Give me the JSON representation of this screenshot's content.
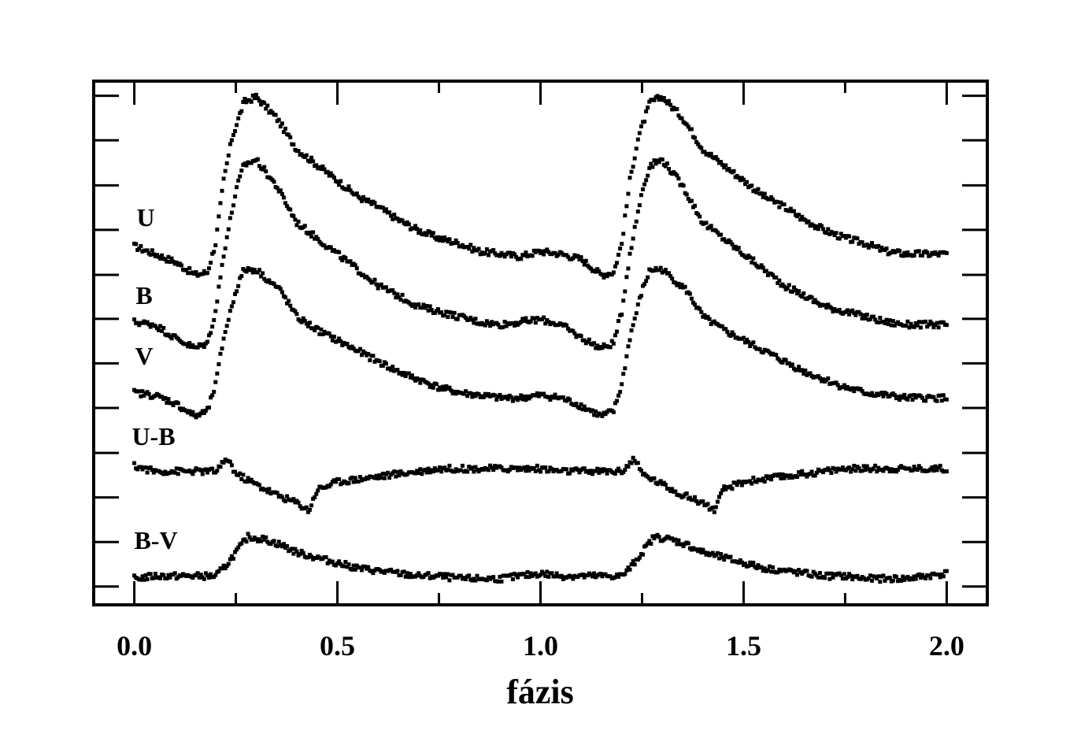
{
  "chart_data": {
    "type": "scatter",
    "title": "",
    "xlabel": "fázis",
    "ylabel": "",
    "xlim": [
      -0.1,
      2.1
    ],
    "ylim": [
      0,
      1
    ],
    "x_ticks": [
      0.0,
      0.5,
      1.0,
      1.5,
      2.0
    ],
    "x_tick_labels": [
      "0.0",
      "0.5",
      "1.0",
      "1.5",
      "2.0"
    ],
    "y_ticks": [
      0.035,
      0.12,
      0.205,
      0.29,
      0.376,
      0.461,
      0.546,
      0.63,
      0.716,
      0.801,
      0.887,
      0.972
    ],
    "y_tick_labels": [],
    "grid": false,
    "legend": "none",
    "marker_color": "#000000",
    "series": [
      {
        "name": "U",
        "x": [
          0.0,
          0.05,
          0.1,
          0.15,
          0.18,
          0.2,
          0.22,
          0.24,
          0.27,
          0.3,
          0.35,
          0.4,
          0.45,
          0.5,
          0.55,
          0.6,
          0.65,
          0.7,
          0.75,
          0.8,
          0.85,
          0.9,
          0.95,
          1.0,
          1.05,
          1.1,
          1.15,
          1.18,
          1.2,
          1.22,
          1.24,
          1.27,
          1.3,
          1.35,
          1.4,
          1.45,
          1.5,
          1.55,
          1.6,
          1.65,
          1.7,
          1.75,
          1.8,
          1.85,
          1.9,
          1.95,
          2.0
        ],
        "y": [
          0.685,
          0.67,
          0.655,
          0.63,
          0.635,
          0.69,
          0.81,
          0.89,
          0.96,
          0.97,
          0.93,
          0.87,
          0.84,
          0.81,
          0.78,
          0.76,
          0.735,
          0.715,
          0.7,
          0.69,
          0.675,
          0.67,
          0.665,
          0.675,
          0.67,
          0.66,
          0.63,
          0.635,
          0.69,
          0.81,
          0.89,
          0.96,
          0.97,
          0.93,
          0.87,
          0.84,
          0.81,
          0.78,
          0.76,
          0.735,
          0.715,
          0.7,
          0.69,
          0.675,
          0.67,
          0.67,
          0.67
        ]
      },
      {
        "name": "B",
        "x": [
          0.0,
          0.05,
          0.1,
          0.15,
          0.18,
          0.2,
          0.22,
          0.25,
          0.27,
          0.3,
          0.35,
          0.4,
          0.45,
          0.5,
          0.55,
          0.6,
          0.65,
          0.7,
          0.75,
          0.8,
          0.85,
          0.9,
          0.95,
          1.0,
          1.05,
          1.1,
          1.15,
          1.18,
          1.2,
          1.22,
          1.25,
          1.27,
          1.3,
          1.35,
          1.4,
          1.45,
          1.5,
          1.55,
          1.6,
          1.65,
          1.7,
          1.75,
          1.8,
          1.85,
          1.9,
          1.95,
          2.0
        ],
        "y": [
          0.54,
          0.535,
          0.51,
          0.49,
          0.5,
          0.56,
          0.67,
          0.79,
          0.84,
          0.85,
          0.8,
          0.73,
          0.7,
          0.67,
          0.64,
          0.61,
          0.59,
          0.57,
          0.56,
          0.55,
          0.54,
          0.535,
          0.54,
          0.545,
          0.535,
          0.51,
          0.49,
          0.5,
          0.56,
          0.67,
          0.79,
          0.84,
          0.85,
          0.8,
          0.73,
          0.7,
          0.67,
          0.64,
          0.61,
          0.59,
          0.57,
          0.56,
          0.55,
          0.54,
          0.535,
          0.535,
          0.535
        ]
      },
      {
        "name": "V",
        "x": [
          0.0,
          0.05,
          0.1,
          0.15,
          0.18,
          0.2,
          0.22,
          0.25,
          0.27,
          0.3,
          0.33,
          0.36,
          0.4,
          0.45,
          0.5,
          0.55,
          0.6,
          0.65,
          0.7,
          0.75,
          0.8,
          0.85,
          0.9,
          0.95,
          1.0,
          1.05,
          1.1,
          1.15,
          1.18,
          1.2,
          1.22,
          1.25,
          1.27,
          1.3,
          1.33,
          1.36,
          1.4,
          1.45,
          1.5,
          1.55,
          1.6,
          1.65,
          1.7,
          1.75,
          1.8,
          1.85,
          1.9,
          1.95,
          2.0
        ],
        "y": [
          0.405,
          0.4,
          0.385,
          0.36,
          0.37,
          0.42,
          0.51,
          0.6,
          0.64,
          0.64,
          0.62,
          0.6,
          0.55,
          0.525,
          0.505,
          0.485,
          0.465,
          0.445,
          0.43,
          0.415,
          0.405,
          0.4,
          0.395,
          0.395,
          0.4,
          0.395,
          0.38,
          0.36,
          0.37,
          0.42,
          0.51,
          0.6,
          0.64,
          0.64,
          0.62,
          0.6,
          0.55,
          0.525,
          0.505,
          0.485,
          0.465,
          0.445,
          0.43,
          0.415,
          0.405,
          0.4,
          0.395,
          0.395,
          0.395
        ]
      },
      {
        "name": "U-B",
        "x": [
          0.0,
          0.05,
          0.1,
          0.15,
          0.2,
          0.22,
          0.23,
          0.25,
          0.3,
          0.35,
          0.4,
          0.43,
          0.45,
          0.5,
          0.55,
          0.6,
          0.65,
          0.7,
          0.75,
          0.8,
          0.85,
          0.9,
          0.95,
          1.0,
          1.05,
          1.1,
          1.15,
          1.2,
          1.22,
          1.23,
          1.25,
          1.3,
          1.35,
          1.4,
          1.43,
          1.45,
          1.5,
          1.55,
          1.6,
          1.65,
          1.7,
          1.75,
          1.8,
          1.85,
          1.9,
          1.95,
          2.0
        ],
        "y": [
          0.265,
          0.255,
          0.255,
          0.255,
          0.255,
          0.27,
          0.28,
          0.25,
          0.23,
          0.21,
          0.195,
          0.18,
          0.22,
          0.235,
          0.24,
          0.245,
          0.25,
          0.255,
          0.26,
          0.26,
          0.26,
          0.26,
          0.26,
          0.26,
          0.255,
          0.255,
          0.255,
          0.255,
          0.27,
          0.28,
          0.25,
          0.23,
          0.21,
          0.195,
          0.18,
          0.22,
          0.235,
          0.24,
          0.245,
          0.25,
          0.255,
          0.26,
          0.26,
          0.26,
          0.26,
          0.26,
          0.26
        ]
      },
      {
        "name": "B-V",
        "x": [
          0.0,
          0.05,
          0.1,
          0.15,
          0.2,
          0.22,
          0.25,
          0.28,
          0.32,
          0.36,
          0.4,
          0.45,
          0.5,
          0.55,
          0.6,
          0.65,
          0.7,
          0.75,
          0.8,
          0.85,
          0.9,
          0.95,
          1.0,
          1.05,
          1.1,
          1.15,
          1.2,
          1.22,
          1.25,
          1.28,
          1.32,
          1.36,
          1.4,
          1.45,
          1.5,
          1.55,
          1.6,
          1.65,
          1.7,
          1.75,
          1.8,
          1.85,
          1.9,
          1.95,
          2.0
        ],
        "y": [
          0.05,
          0.055,
          0.055,
          0.055,
          0.055,
          0.07,
          0.1,
          0.13,
          0.125,
          0.115,
          0.1,
          0.09,
          0.08,
          0.07,
          0.065,
          0.06,
          0.055,
          0.055,
          0.05,
          0.05,
          0.05,
          0.055,
          0.06,
          0.055,
          0.055,
          0.055,
          0.055,
          0.07,
          0.1,
          0.13,
          0.125,
          0.115,
          0.1,
          0.09,
          0.08,
          0.07,
          0.065,
          0.06,
          0.055,
          0.055,
          0.05,
          0.05,
          0.05,
          0.055,
          0.06
        ]
      }
    ],
    "annotations": [
      "U",
      "B",
      "V",
      "U-B",
      "B-V"
    ]
  }
}
